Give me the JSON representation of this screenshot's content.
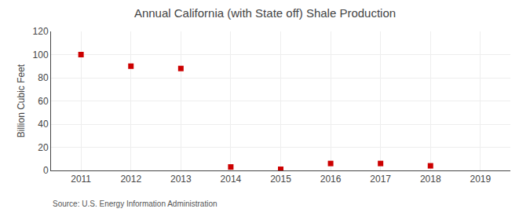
{
  "chart_data": {
    "type": "scatter",
    "title": "Annual California (with State off) Shale Production",
    "ylabel": "Billion Cubic Feet",
    "annotations": [
      "Source: U.S. Energy Information Administration"
    ],
    "x": [
      2011,
      2012,
      2013,
      2014,
      2015,
      2016,
      2017,
      2018
    ],
    "values": [
      100,
      90,
      88,
      3,
      1,
      6,
      6,
      4
    ],
    "color": "#cc0000",
    "marker": "square",
    "xlim": [
      2010.4,
      2019.6
    ],
    "xticks": [
      2011,
      2012,
      2013,
      2014,
      2015,
      2016,
      2017,
      2018,
      2019
    ],
    "ylim": [
      0,
      120
    ],
    "yticks": [
      0,
      20,
      40,
      60,
      80,
      100,
      120
    ],
    "grid": true
  }
}
